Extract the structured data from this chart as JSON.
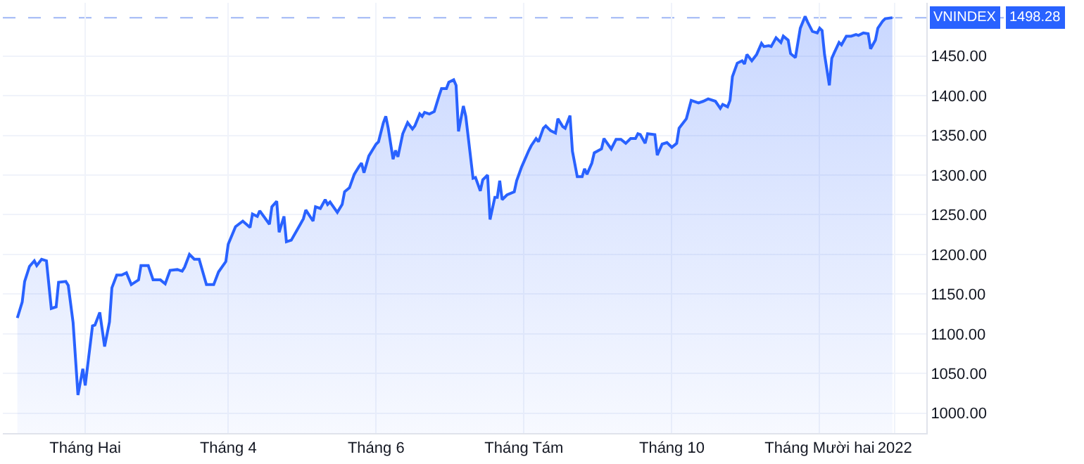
{
  "chart_data": {
    "type": "area",
    "x": [
      "2021-01-04",
      "2021-01-06",
      "2021-01-07",
      "2021-01-09",
      "2021-01-11",
      "2021-01-12",
      "2021-01-14",
      "2021-01-16",
      "2021-01-18",
      "2021-01-20",
      "2021-01-21",
      "2021-01-24",
      "2021-01-25",
      "2021-01-27",
      "2021-01-29",
      "2021-01-31",
      "2021-02-01",
      "2021-02-04",
      "2021-02-05",
      "2021-02-07",
      "2021-02-09",
      "2021-02-11",
      "2021-02-12",
      "2021-02-14",
      "2021-02-16",
      "2021-02-18",
      "2021-02-20",
      "2021-02-23",
      "2021-02-24",
      "2021-02-27",
      "2021-03-01",
      "2021-03-04",
      "2021-03-06",
      "2021-03-08",
      "2021-03-11",
      "2021-03-13",
      "2021-03-14",
      "2021-03-16",
      "2021-03-18",
      "2021-03-20",
      "2021-03-23",
      "2021-03-26",
      "2021-03-28",
      "2021-03-31",
      "2021-04-01",
      "2021-04-04",
      "2021-04-07",
      "2021-04-10",
      "2021-04-11",
      "2021-04-13",
      "2021-04-14",
      "2021-04-18",
      "2021-04-19",
      "2021-04-21",
      "2021-04-22",
      "2021-04-24",
      "2021-04-25",
      "2021-04-27",
      "2021-04-30",
      "2021-05-02",
      "2021-05-03",
      "2021-05-06",
      "2021-05-07",
      "2021-05-09",
      "2021-05-11",
      "2021-05-12",
      "2021-05-13",
      "2021-05-16",
      "2021-05-18",
      "2021-05-19",
      "2021-05-21",
      "2021-05-23",
      "2021-05-25",
      "2021-05-26",
      "2021-05-27",
      "2021-05-29",
      "2021-06-01",
      "2021-06-02",
      "2021-06-04",
      "2021-06-05",
      "2021-06-06",
      "2021-06-08",
      "2021-06-09",
      "2021-06-10",
      "2021-06-12",
      "2021-06-14",
      "2021-06-16",
      "2021-06-17",
      "2021-06-19",
      "2021-06-20",
      "2021-06-21",
      "2021-06-23",
      "2021-06-25",
      "2021-06-27",
      "2021-06-28",
      "2021-06-30",
      "2021-07-01",
      "2021-07-03",
      "2021-07-04",
      "2021-07-05",
      "2021-07-07",
      "2021-07-08",
      "2021-07-11",
      "2021-07-12",
      "2021-07-14",
      "2021-07-15",
      "2021-07-17",
      "2021-07-18",
      "2021-07-20",
      "2021-07-21",
      "2021-07-22",
      "2021-07-23",
      "2021-07-25",
      "2021-07-28",
      "2021-07-29",
      "2021-07-31",
      "2021-08-01",
      "2021-08-03",
      "2021-08-04",
      "2021-08-06",
      "2021-08-07",
      "2021-08-09",
      "2021-08-10",
      "2021-08-12",
      "2021-08-14",
      "2021-08-15",
      "2021-08-17",
      "2021-08-18",
      "2021-08-20",
      "2021-08-21",
      "2021-08-23",
      "2021-08-25",
      "2021-08-26",
      "2021-08-27",
      "2021-08-29",
      "2021-08-30",
      "2021-09-02",
      "2021-09-03",
      "2021-09-06",
      "2021-09-08",
      "2021-09-10",
      "2021-09-12",
      "2021-09-14",
      "2021-09-16",
      "2021-09-17",
      "2021-09-18",
      "2021-09-20",
      "2021-09-21",
      "2021-09-24",
      "2021-09-25",
      "2021-09-27",
      "2021-09-29",
      "2021-10-01",
      "2021-10-03",
      "2021-10-04",
      "2021-10-07",
      "2021-10-09",
      "2021-10-12",
      "2021-10-14",
      "2021-10-16",
      "2021-10-19",
      "2021-10-21",
      "2021-10-22",
      "2021-10-24",
      "2021-10-25",
      "2021-10-26",
      "2021-10-28",
      "2021-10-30",
      "2021-10-31",
      "2021-11-01",
      "2021-11-03",
      "2021-11-05",
      "2021-11-07",
      "2021-11-08",
      "2021-11-10",
      "2021-11-11",
      "2021-11-13",
      "2021-11-15",
      "2021-11-16",
      "2021-11-18",
      "2021-11-19",
      "2021-11-21",
      "2021-11-23",
      "2021-11-25",
      "2021-11-26",
      "2021-11-28",
      "2021-11-30",
      "2021-12-01",
      "2021-12-02",
      "2021-12-03",
      "2021-12-05",
      "2021-12-06",
      "2021-12-07",
      "2021-12-09",
      "2021-12-10",
      "2021-12-12",
      "2021-12-14",
      "2021-12-16",
      "2021-12-17",
      "2021-12-19",
      "2021-12-21",
      "2021-12-22",
      "2021-12-24",
      "2021-12-25",
      "2021-12-27",
      "2021-12-28",
      "2021-12-31"
    ],
    "series": [
      {
        "name": "VNINDEX",
        "color": "#2962ff",
        "values": [
          1120,
          1140,
          1166,
          1185,
          1192,
          1186,
          1194,
          1192,
          1132,
          1134,
          1165,
          1166,
          1161,
          1114,
          1023,
          1056,
          1035,
          1110,
          1111,
          1127,
          1084,
          1115,
          1158,
          1174,
          1174,
          1177,
          1162,
          1168,
          1186,
          1186,
          1168,
          1168,
          1163,
          1180,
          1181,
          1179,
          1184,
          1200,
          1194,
          1194,
          1162,
          1162,
          1178,
          1191,
          1213,
          1235,
          1242,
          1234,
          1251,
          1248,
          1255,
          1238,
          1260,
          1267,
          1228,
          1248,
          1216,
          1218,
          1234,
          1245,
          1256,
          1242,
          1260,
          1258,
          1269,
          1263,
          1266,
          1253,
          1263,
          1279,
          1284,
          1301,
          1311,
          1315,
          1303,
          1324,
          1339,
          1342,
          1366,
          1374,
          1359,
          1320,
          1331,
          1323,
          1352,
          1366,
          1358,
          1362,
          1377,
          1374,
          1379,
          1377,
          1380,
          1400,
          1409,
          1409,
          1417,
          1420,
          1413,
          1355,
          1387,
          1374,
          1296,
          1297,
          1280,
          1294,
          1300,
          1244,
          1272,
          1272,
          1293,
          1269,
          1275,
          1279,
          1293,
          1310,
          1317,
          1331,
          1337,
          1346,
          1342,
          1359,
          1362,
          1356,
          1353,
          1371,
          1361,
          1359,
          1375,
          1330,
          1298,
          1298,
          1308,
          1301,
          1315,
          1328,
          1333,
          1346,
          1333,
          1345,
          1345,
          1340,
          1346,
          1346,
          1352,
          1351,
          1340,
          1352,
          1351,
          1325,
          1339,
          1341,
          1335,
          1340,
          1359,
          1371,
          1394,
          1391,
          1393,
          1396,
          1393,
          1384,
          1389,
          1386,
          1394,
          1424,
          1441,
          1444,
          1440,
          1452,
          1444,
          1452,
          1466,
          1462,
          1463,
          1462,
          1473,
          1467,
          1475,
          1470,
          1453,
          1448,
          1485,
          1500,
          1493,
          1481,
          1479,
          1485,
          1482,
          1452,
          1413,
          1447,
          1454,
          1467,
          1464,
          1475,
          1475,
          1477,
          1476,
          1479,
          1478,
          1459,
          1470,
          1485,
          1494,
          1497,
          1498.28
        ]
      }
    ],
    "xlim": [
      "2020-12-29",
      "2022-01-14"
    ],
    "xticks": [
      {
        "value": "2021-02-01",
        "label": "Tháng Hai"
      },
      {
        "value": "2021-04-01",
        "label": "Tháng 4"
      },
      {
        "value": "2021-06-01",
        "label": "Tháng 6"
      },
      {
        "value": "2021-08-01",
        "label": "Tháng Tám"
      },
      {
        "value": "2021-10-01",
        "label": "Tháng 10"
      },
      {
        "value": "2021-12-01",
        "label": "Tháng Mười hai"
      },
      {
        "value": "2022-01-01",
        "label": "2022"
      }
    ],
    "ylim": [
      975,
      1517
    ],
    "yticks": [
      {
        "value": 1000,
        "label": "1000.00"
      },
      {
        "value": 1050,
        "label": "1050.00"
      },
      {
        "value": 1100,
        "label": "1100.00"
      },
      {
        "value": 1150,
        "label": "1150.00"
      },
      {
        "value": 1200,
        "label": "1200.00"
      },
      {
        "value": 1250,
        "label": "1250.00"
      },
      {
        "value": 1300,
        "label": "1300.00"
      },
      {
        "value": 1350,
        "label": "1350.00"
      },
      {
        "value": 1400,
        "label": "1400.00"
      },
      {
        "value": 1450,
        "label": "1450.00"
      }
    ],
    "ref_lines": [
      {
        "axis": "y",
        "value": 1498.28,
        "label": "1498.28",
        "color": "#9fb6f5",
        "line_style": "dashed"
      }
    ],
    "grid": true,
    "legend": false,
    "marker": "none",
    "line_style": "solid"
  }
}
